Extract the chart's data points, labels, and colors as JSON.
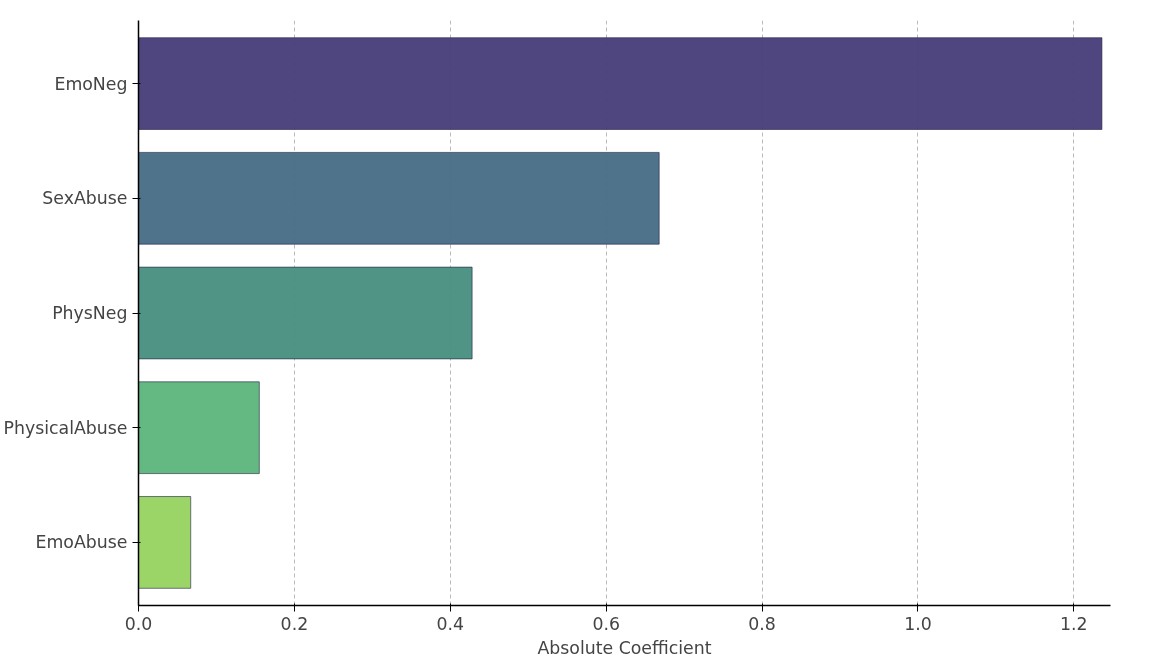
{
  "chart_data": {
    "type": "bar",
    "orientation": "horizontal",
    "xlabel": "Absolute Coefficient",
    "categories": [
      "EmoNeg",
      "SexAbuse",
      "PhysNeg",
      "PhysicalAbuse",
      "EmoAbuse"
    ],
    "values": [
      1.236,
      0.668,
      0.428,
      0.155,
      0.067
    ],
    "colors": [
      "#463c78",
      "#466b84",
      "#478e7e",
      "#5bb57a",
      "#96d35f"
    ],
    "xlim": [
      0,
      1.247
    ],
    "xticks": [
      {
        "value": 0,
        "label": "0.0"
      },
      0.2,
      0.4,
      0.6,
      0.8,
      {
        "value": 1,
        "label": "1.0"
      },
      1.2
    ],
    "grid": "x",
    "line_style": "dashed"
  }
}
